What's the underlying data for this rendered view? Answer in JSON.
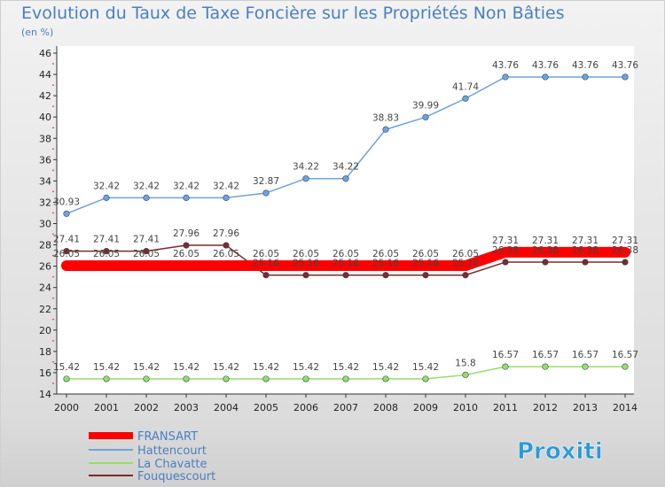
{
  "chart_data": {
    "type": "line",
    "title": "Evolution du Taux de Taxe Foncière sur les Propriétés Non Bâties",
    "unit_label": "(en %)",
    "xlabel": "",
    "ylabel": "",
    "x": [
      "2000",
      "2001",
      "2002",
      "2003",
      "2004",
      "2005",
      "2006",
      "2007",
      "2008",
      "2009",
      "2010",
      "2011",
      "2012",
      "2013",
      "2014"
    ],
    "y_ticks": [
      "14",
      "16",
      "18",
      "20",
      "22",
      "24",
      "26",
      "28",
      "30",
      "32",
      "34",
      "36",
      "38",
      "40",
      "42",
      "44",
      "46"
    ],
    "ylim": [
      14,
      46
    ],
    "grid": false,
    "legend_position": "bottom-left",
    "series": [
      {
        "name": "FRANSART",
        "color": "#ff0000",
        "values": [
          26.05,
          26.05,
          26.05,
          26.05,
          26.05,
          26.05,
          26.05,
          26.05,
          26.05,
          26.05,
          26.05,
          27.31,
          27.31,
          27.31,
          27.31
        ],
        "labels": [
          "26.05",
          "26.05",
          "26.05",
          "26.05",
          "26.05",
          "26.05",
          "26.05",
          "26.05",
          "26.05",
          "26.05",
          "26.05",
          "27.31",
          "27.31",
          "27.31",
          "27.31"
        ]
      },
      {
        "name": "Hattencourt",
        "color": "#6fa3d9",
        "values": [
          30.93,
          32.42,
          32.42,
          32.42,
          32.42,
          32.87,
          34.22,
          34.22,
          38.83,
          39.99,
          41.74,
          43.76,
          43.76,
          43.76,
          43.76
        ],
        "labels": [
          "30.93",
          "32.42",
          "32.42",
          "32.42",
          "32.42",
          "32.87",
          "34.22",
          "34.22",
          "38.83",
          "39.99",
          "41.74",
          "43.76",
          "43.76",
          "43.76",
          "43.76"
        ]
      },
      {
        "name": "La Chavatte",
        "color": "#99dd66",
        "values": [
          15.42,
          15.42,
          15.42,
          15.42,
          15.42,
          15.42,
          15.42,
          15.42,
          15.42,
          15.42,
          15.8,
          16.57,
          16.57,
          16.57,
          16.57
        ],
        "labels": [
          "15.42",
          "15.42",
          "15.42",
          "15.42",
          "15.42",
          "15.42",
          "15.42",
          "15.42",
          "15.42",
          "15.42",
          "15.8",
          "16.57",
          "16.57",
          "16.57",
          "16.57"
        ]
      },
      {
        "name": "Fouquescourt",
        "color": "#7a2b2b",
        "values": [
          27.41,
          27.41,
          27.41,
          27.96,
          27.96,
          25.16,
          25.16,
          25.16,
          25.16,
          25.16,
          25.16,
          26.38,
          26.38,
          26.38,
          26.38
        ],
        "labels": [
          "27.41",
          "27.41",
          "27.41",
          "27.96",
          "27.96",
          "25.16",
          "25.16",
          "25.16",
          "25.16",
          "25.16",
          "25.16",
          "26.38",
          "26.38",
          "26.38",
          "26.38"
        ]
      }
    ]
  },
  "brand": {
    "logo_text": "Proxiti"
  }
}
